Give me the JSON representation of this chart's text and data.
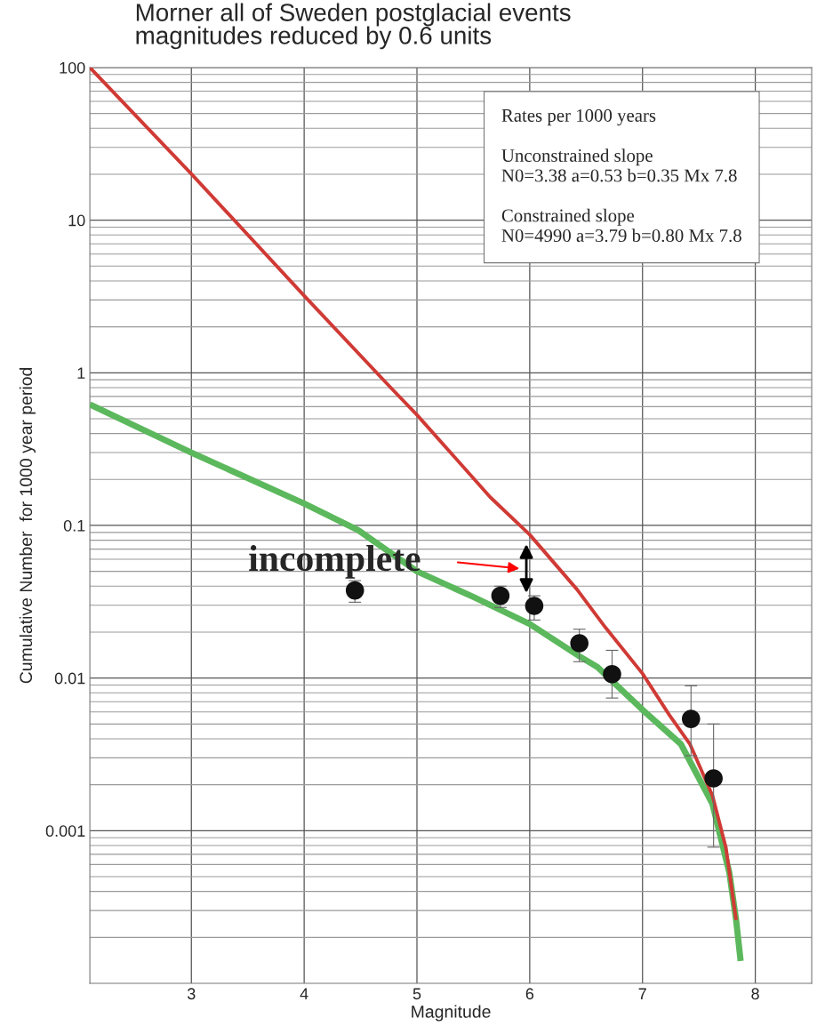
{
  "chart_data": {
    "type": "line",
    "title": "Morner all of Sweden postglacial events\nmagnitudes reduced by 0.6 units",
    "xlabel": "Magnitude",
    "ylabel": "Cumulative Number  for 1000 year period",
    "log": "y",
    "grid": true,
    "xlim": [
      2.1,
      8.5
    ],
    "ylim": [
      0.0001,
      100
    ],
    "xticks": [
      3,
      4,
      5,
      6,
      7,
      8
    ],
    "yticks": [
      0.001,
      0.01,
      0.1,
      1,
      10,
      100
    ],
    "series": [
      {
        "color": "#d03a35",
        "x": [
          2.1,
          3.0,
          4.0,
          4.76,
          5.0,
          5.65,
          6.0,
          6.42,
          6.67,
          7.0,
          7.24,
          7.42,
          7.62,
          7.74,
          7.83
        ],
        "values": [
          100,
          20.1,
          3.2,
          0.81,
          0.53,
          0.153,
          0.087,
          0.038,
          0.0215,
          0.0107,
          0.0057,
          0.0037,
          0.0017,
          0.00077,
          0.00026
        ]
      },
      {
        "color": "#5cb85c",
        "x": [
          2.1,
          3.0,
          4.0,
          4.48,
          5.0,
          5.5,
          6.0,
          6.44,
          6.6,
          7.0,
          7.34,
          7.62,
          7.77,
          7.83,
          7.87
        ],
        "values": [
          0.62,
          0.3,
          0.139,
          0.093,
          0.05,
          0.034,
          0.0226,
          0.0139,
          0.0118,
          0.0062,
          0.0037,
          0.0015,
          0.00053,
          0.00026,
          0.00014
        ]
      },
      {
        "type": "scatter",
        "color": "#111111",
        "marker": "circle",
        "x": [
          4.45,
          5.74,
          6.04,
          6.44,
          6.73,
          7.43,
          7.63
        ],
        "values": [
          0.0375,
          0.0346,
          0.0297,
          0.0169,
          0.0106,
          0.0054,
          0.0022
        ],
        "errors": [
          [
            0.0314,
            0.0435
          ],
          [
            0.029,
            0.04
          ],
          [
            0.024,
            0.0346
          ],
          [
            0.0128,
            0.0209
          ],
          [
            0.0074,
            0.0152
          ],
          [
            0.0031,
            0.0089
          ],
          [
            0.00078,
            0.005
          ]
        ]
      }
    ],
    "annotations": [
      {
        "text": "incomplete",
        "x": 6.0,
        "y": 0.087
      },
      "Rates per 1000 years\n\nUnconstrained slope\nN0=3.38 a=0.53 b=0.35 Mx 7.8\n\nConstrained slope\nN0=4990 a=3.79 b=0.80 Mx 7.8"
    ]
  }
}
